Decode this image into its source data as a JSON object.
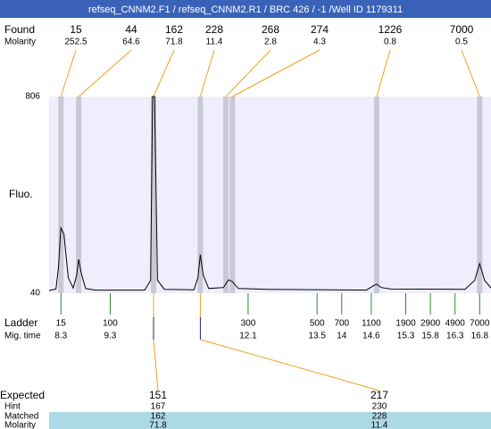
{
  "header": {
    "title": "refseq_CNNM2.F1 / refseq_CNNM2.R1 / BRC 426 / -1 /Well ID 1179311"
  },
  "found": {
    "label": "Found",
    "sizes": [
      15,
      44,
      162,
      228,
      268,
      274,
      1226,
      7000
    ],
    "molarity_label": "Molarity",
    "molarity": [
      252.5,
      64.6,
      71.8,
      11.4,
      2.8,
      4.3,
      0.8,
      0.5
    ]
  },
  "chart_data": {
    "type": "line",
    "y_label": "Fluo.",
    "ylim": [
      40,
      806
    ],
    "yticks": [
      40,
      806
    ],
    "xlim": [
      8.06,
      17.03
    ],
    "color": "#000000",
    "x": [
      8.06,
      8.2,
      8.25,
      8.3,
      8.36,
      8.45,
      8.55,
      8.62,
      8.66,
      8.71,
      8.8,
      9.0,
      10.0,
      10.12,
      10.16,
      10.2,
      10.26,
      10.4,
      11.0,
      11.08,
      11.13,
      11.19,
      11.3,
      11.6,
      11.7,
      11.78,
      11.9,
      12.5,
      14.5,
      14.65,
      14.71,
      14.8,
      15.0,
      16.5,
      16.7,
      16.8,
      16.9,
      17.03
    ],
    "values": [
      50,
      56,
      140,
      294,
      270,
      100,
      60,
      110,
      172,
      120,
      58,
      52,
      52,
      90,
      806,
      806,
      90,
      55,
      53,
      100,
      190,
      110,
      58,
      62,
      92,
      85,
      58,
      55,
      52,
      70,
      75,
      62,
      56,
      55,
      90,
      155,
      90,
      60
    ],
    "peak_x": [
      8.3,
      8.66,
      10.18,
      11.13,
      11.65,
      11.78,
      14.71,
      16.8
    ],
    "ladder_label": "Ladder",
    "ladder": [
      15,
      100,
      300,
      500,
      700,
      1100,
      1900,
      2900,
      4900,
      7000
    ],
    "mig_time_label": "Mig. time",
    "ladder_x": [
      8.3,
      9.3,
      12.1,
      13.5,
      14,
      14.6,
      15.3,
      15.8,
      16.3,
      16.8
    ]
  },
  "expected": {
    "label": "Expected",
    "values": [
      151,
      217
    ],
    "rows": [
      {
        "label": "Hint",
        "values": [
          167,
          230
        ]
      },
      {
        "label": "Matched",
        "values": [
          162,
          228
        ]
      },
      {
        "label": "Molarity",
        "values": [
          71.8,
          11.4
        ]
      }
    ]
  }
}
